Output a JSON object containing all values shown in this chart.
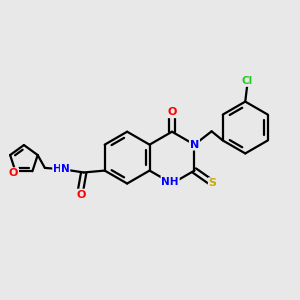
{
  "bg_color": "#e8e8e8",
  "atom_colors": {
    "O": "#ff0000",
    "N": "#0000ff",
    "S": "#ccaa00",
    "Cl": "#22cc22",
    "C": "#000000"
  },
  "lw": 1.6,
  "ring_r": 0.68,
  "furan_r": 0.38
}
